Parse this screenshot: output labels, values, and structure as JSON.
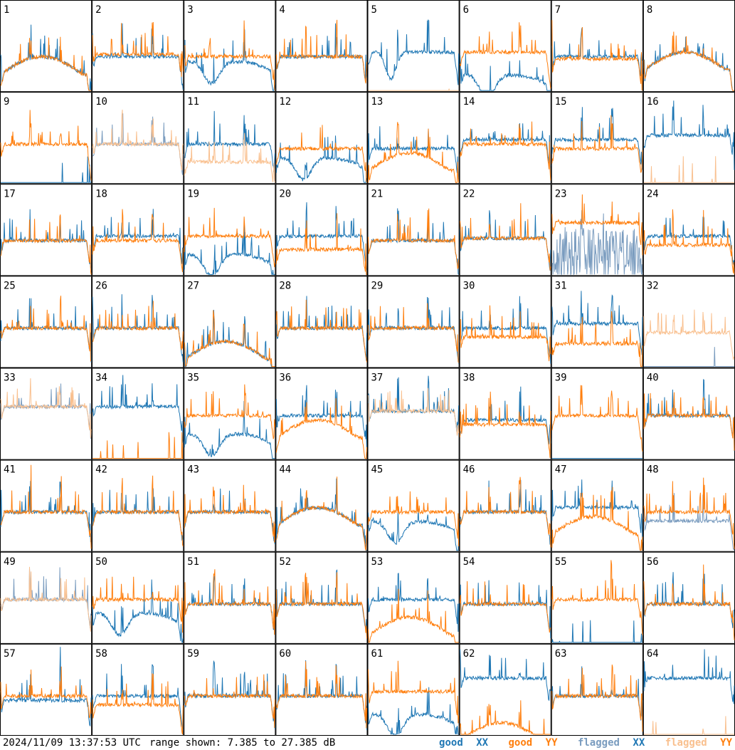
{
  "footer": {
    "timestamp": "2024/11/09 13:37:53 UTC",
    "range": "range shown: 7.385 to 27.385 dB"
  },
  "legend": [
    {
      "word": "good",
      "pol": "XX",
      "color": "#1f77b4",
      "pol_color": "#1f77b4"
    },
    {
      "word": "good",
      "pol": "YY",
      "color": "#ff7f0e",
      "pol_color": "#ff7f0e"
    },
    {
      "word": "flagged",
      "pol": "XX",
      "color": "#7a9cbf",
      "pol_color": "#1f77b4"
    },
    {
      "word": "flagged",
      "pol": "YY",
      "color": "#f9c08f",
      "pol_color": "#ff7f0e"
    }
  ],
  "colors": {
    "good_xx": "#1f77b4",
    "good_yy": "#ff7f0e",
    "flagged_xx": "#7a9cbf",
    "flagged_yy": "#f9c08f"
  },
  "chart_data": {
    "type": "line",
    "title": "",
    "xlabel": "",
    "ylabel": "",
    "ylim": [
      7.385,
      27.385
    ],
    "units": "dB",
    "grid": false,
    "panels": [
      {
        "label": "1",
        "xx": {
          "flagged": false,
          "level": 15,
          "shape": "hump"
        },
        "yy": {
          "flagged": false,
          "level": 15,
          "shape": "hump"
        }
      },
      {
        "label": "2",
        "xx": {
          "flagged": false,
          "level": 15
        },
        "yy": {
          "flagged": false,
          "level": 15.5
        }
      },
      {
        "label": "3",
        "xx": {
          "flagged": false,
          "level": 14,
          "shape": "droop"
        },
        "yy": {
          "flagged": false,
          "level": 15
        }
      },
      {
        "label": "4",
        "xx": {
          "flagged": false,
          "level": 15
        },
        "yy": {
          "flagged": false,
          "level": 15
        }
      },
      {
        "label": "5",
        "xx": {
          "flagged": false,
          "level": 16,
          "shape": "dip"
        },
        "yy": {
          "flagged": true,
          "level": 7.4,
          "shape": "dead"
        }
      },
      {
        "label": "6",
        "xx": {
          "flagged": false,
          "level": 11,
          "shape": "droop"
        },
        "yy": {
          "flagged": false,
          "level": 16
        }
      },
      {
        "label": "7",
        "xx": {
          "flagged": false,
          "level": 15
        },
        "yy": {
          "flagged": false,
          "level": 14.5
        }
      },
      {
        "label": "8",
        "xx": {
          "flagged": false,
          "level": 16,
          "shape": "hump"
        },
        "yy": {
          "flagged": false,
          "level": 16,
          "shape": "hump"
        }
      },
      {
        "label": "9",
        "xx": {
          "flagged": false,
          "level": 7.4,
          "shape": "dead"
        },
        "yy": {
          "flagged": false,
          "level": 16
        }
      },
      {
        "label": "10",
        "xx": {
          "flagged": true,
          "level": 16
        },
        "yy": {
          "flagged": true,
          "level": 16
        }
      },
      {
        "label": "11",
        "xx": {
          "flagged": false,
          "level": 16
        },
        "yy": {
          "flagged": true,
          "level": 12
        }
      },
      {
        "label": "12",
        "xx": {
          "flagged": false,
          "level": 13,
          "shape": "droop"
        },
        "yy": {
          "flagged": false,
          "level": 15
        }
      },
      {
        "label": "13",
        "xx": {
          "flagged": false,
          "level": 15
        },
        "yy": {
          "flagged": false,
          "level": 14,
          "shape": "hump"
        }
      },
      {
        "label": "14",
        "xx": {
          "flagged": false,
          "level": 17
        },
        "yy": {
          "flagged": false,
          "level": 16
        }
      },
      {
        "label": "15",
        "xx": {
          "flagged": false,
          "level": 17
        },
        "yy": {
          "flagged": false,
          "level": 15
        }
      },
      {
        "label": "16",
        "xx": {
          "flagged": false,
          "level": 18
        },
        "yy": {
          "flagged": true,
          "level": 7.4,
          "shape": "dead"
        }
      },
      {
        "label": "17",
        "xx": {
          "flagged": false,
          "level": 15
        },
        "yy": {
          "flagged": false,
          "level": 15
        }
      },
      {
        "label": "18",
        "xx": {
          "flagged": false,
          "level": 16
        },
        "yy": {
          "flagged": false,
          "level": 15
        }
      },
      {
        "label": "19",
        "xx": {
          "flagged": false,
          "level": 12,
          "shape": "droop"
        },
        "yy": {
          "flagged": false,
          "level": 16
        }
      },
      {
        "label": "20",
        "xx": {
          "flagged": false,
          "level": 16
        },
        "yy": {
          "flagged": false,
          "level": 13
        }
      },
      {
        "label": "21",
        "xx": {
          "flagged": false,
          "level": 15
        },
        "yy": {
          "flagged": false,
          "level": 15
        }
      },
      {
        "label": "22",
        "xx": {
          "flagged": false,
          "level": 15.5
        },
        "yy": {
          "flagged": false,
          "level": 15.5
        }
      },
      {
        "label": "23",
        "xx": {
          "flagged": true,
          "level": 12,
          "shape": "noisy"
        },
        "yy": {
          "flagged": false,
          "level": 19
        }
      },
      {
        "label": "24",
        "xx": {
          "flagged": false,
          "level": 16
        },
        "yy": {
          "flagged": false,
          "level": 14
        }
      },
      {
        "label": "25",
        "xx": {
          "flagged": false,
          "level": 16
        },
        "yy": {
          "flagged": false,
          "level": 16
        }
      },
      {
        "label": "26",
        "xx": {
          "flagged": false,
          "level": 16
        },
        "yy": {
          "flagged": false,
          "level": 16
        }
      },
      {
        "label": "27",
        "xx": {
          "flagged": false,
          "level": 13,
          "shape": "hump"
        },
        "yy": {
          "flagged": false,
          "level": 13,
          "shape": "hump"
        }
      },
      {
        "label": "28",
        "xx": {
          "flagged": false,
          "level": 16
        },
        "yy": {
          "flagged": false,
          "level": 16
        }
      },
      {
        "label": "29",
        "xx": {
          "flagged": false,
          "level": 16
        },
        "yy": {
          "flagged": false,
          "level": 16
        }
      },
      {
        "label": "30",
        "xx": {
          "flagged": false,
          "level": 16
        },
        "yy": {
          "flagged": false,
          "level": 14
        }
      },
      {
        "label": "31",
        "xx": {
          "flagged": false,
          "level": 17
        },
        "yy": {
          "flagged": false,
          "level": 12.5
        }
      },
      {
        "label": "32",
        "xx": {
          "flagged": true,
          "level": 7.4,
          "shape": "dead"
        },
        "yy": {
          "flagged": true,
          "level": 15
        }
      },
      {
        "label": "33",
        "xx": {
          "flagged": true,
          "level": 19
        },
        "yy": {
          "flagged": true,
          "level": 19
        }
      },
      {
        "label": "34",
        "xx": {
          "flagged": false,
          "level": 19
        },
        "yy": {
          "flagged": false,
          "level": 7.4,
          "shape": "dead"
        }
      },
      {
        "label": "35",
        "xx": {
          "flagged": false,
          "level": 13,
          "shape": "droop"
        },
        "yy": {
          "flagged": false,
          "level": 17
        }
      },
      {
        "label": "36",
        "xx": {
          "flagged": false,
          "level": 17
        },
        "yy": {
          "flagged": false,
          "level": 16,
          "shape": "hump"
        }
      },
      {
        "label": "37",
        "xx": {
          "flagged": false,
          "level": 18
        },
        "yy": {
          "flagged": true,
          "level": 18
        }
      },
      {
        "label": "38",
        "xx": {
          "flagged": false,
          "level": 16
        },
        "yy": {
          "flagged": false,
          "level": 15
        }
      },
      {
        "label": "39",
        "xx": {
          "flagged": false,
          "level": 7.4,
          "shape": "dead"
        },
        "yy": {
          "flagged": false,
          "level": 17
        }
      },
      {
        "label": "40",
        "xx": {
          "flagged": false,
          "level": 17
        },
        "yy": {
          "flagged": false,
          "level": 17
        }
      },
      {
        "label": "41",
        "xx": {
          "flagged": false,
          "level": 16
        },
        "yy": {
          "flagged": false,
          "level": 16
        }
      },
      {
        "label": "42",
        "xx": {
          "flagged": false,
          "level": 16
        },
        "yy": {
          "flagged": false,
          "level": 16
        }
      },
      {
        "label": "43",
        "xx": {
          "flagged": false,
          "level": 16
        },
        "yy": {
          "flagged": false,
          "level": 16
        }
      },
      {
        "label": "44",
        "xx": {
          "flagged": false,
          "level": 17,
          "shape": "hump"
        },
        "yy": {
          "flagged": false,
          "level": 17,
          "shape": "hump"
        }
      },
      {
        "label": "45",
        "xx": {
          "flagged": false,
          "level": 14,
          "shape": "droop"
        },
        "yy": {
          "flagged": false,
          "level": 16
        }
      },
      {
        "label": "46",
        "xx": {
          "flagged": false,
          "level": 16
        },
        "yy": {
          "flagged": false,
          "level": 16
        }
      },
      {
        "label": "47",
        "xx": {
          "flagged": false,
          "level": 17
        },
        "yy": {
          "flagged": false,
          "level": 15,
          "shape": "hump"
        }
      },
      {
        "label": "48",
        "xx": {
          "flagged": true,
          "level": 14
        },
        "yy": {
          "flagged": false,
          "level": 16
        }
      },
      {
        "label": "49",
        "xx": {
          "flagged": true,
          "level": 17
        },
        "yy": {
          "flagged": true,
          "level": 17
        }
      },
      {
        "label": "50",
        "xx": {
          "flagged": false,
          "level": 14,
          "shape": "droop"
        },
        "yy": {
          "flagged": false,
          "level": 17
        }
      },
      {
        "label": "51",
        "xx": {
          "flagged": false,
          "level": 16
        },
        "yy": {
          "flagged": false,
          "level": 16
        }
      },
      {
        "label": "52",
        "xx": {
          "flagged": false,
          "level": 16
        },
        "yy": {
          "flagged": false,
          "level": 16
        }
      },
      {
        "label": "53",
        "xx": {
          "flagged": false,
          "level": 17
        },
        "yy": {
          "flagged": false,
          "level": 13,
          "shape": "hump"
        }
      },
      {
        "label": "54",
        "xx": {
          "flagged": false,
          "level": 16
        },
        "yy": {
          "flagged": false,
          "level": 16
        }
      },
      {
        "label": "55",
        "xx": {
          "flagged": false,
          "level": 7.4,
          "shape": "dead"
        },
        "yy": {
          "flagged": false,
          "level": 17
        }
      },
      {
        "label": "56",
        "xx": {
          "flagged": false,
          "level": 16
        },
        "yy": {
          "flagged": false,
          "level": 16
        }
      },
      {
        "label": "57",
        "xx": {
          "flagged": false,
          "level": 15
        },
        "yy": {
          "flagged": false,
          "level": 16
        }
      },
      {
        "label": "58",
        "xx": {
          "flagged": false,
          "level": 16
        },
        "yy": {
          "flagged": false,
          "level": 14
        }
      },
      {
        "label": "59",
        "xx": {
          "flagged": false,
          "level": 16
        },
        "yy": {
          "flagged": false,
          "level": 16
        }
      },
      {
        "label": "60",
        "xx": {
          "flagged": false,
          "level": 16
        },
        "yy": {
          "flagged": false,
          "level": 16
        }
      },
      {
        "label": "61",
        "xx": {
          "flagged": false,
          "level": 12,
          "shape": "droop"
        },
        "yy": {
          "flagged": false,
          "level": 17
        }
      },
      {
        "label": "62",
        "xx": {
          "flagged": false,
          "level": 20
        },
        "yy": {
          "flagged": false,
          "level": 10,
          "shape": "hump"
        }
      },
      {
        "label": "63",
        "xx": {
          "flagged": false,
          "level": 16
        },
        "yy": {
          "flagged": false,
          "level": 16
        }
      },
      {
        "label": "64",
        "xx": {
          "flagged": false,
          "level": 20
        },
        "yy": {
          "flagged": true,
          "level": 7.4,
          "shape": "dead"
        }
      }
    ]
  }
}
